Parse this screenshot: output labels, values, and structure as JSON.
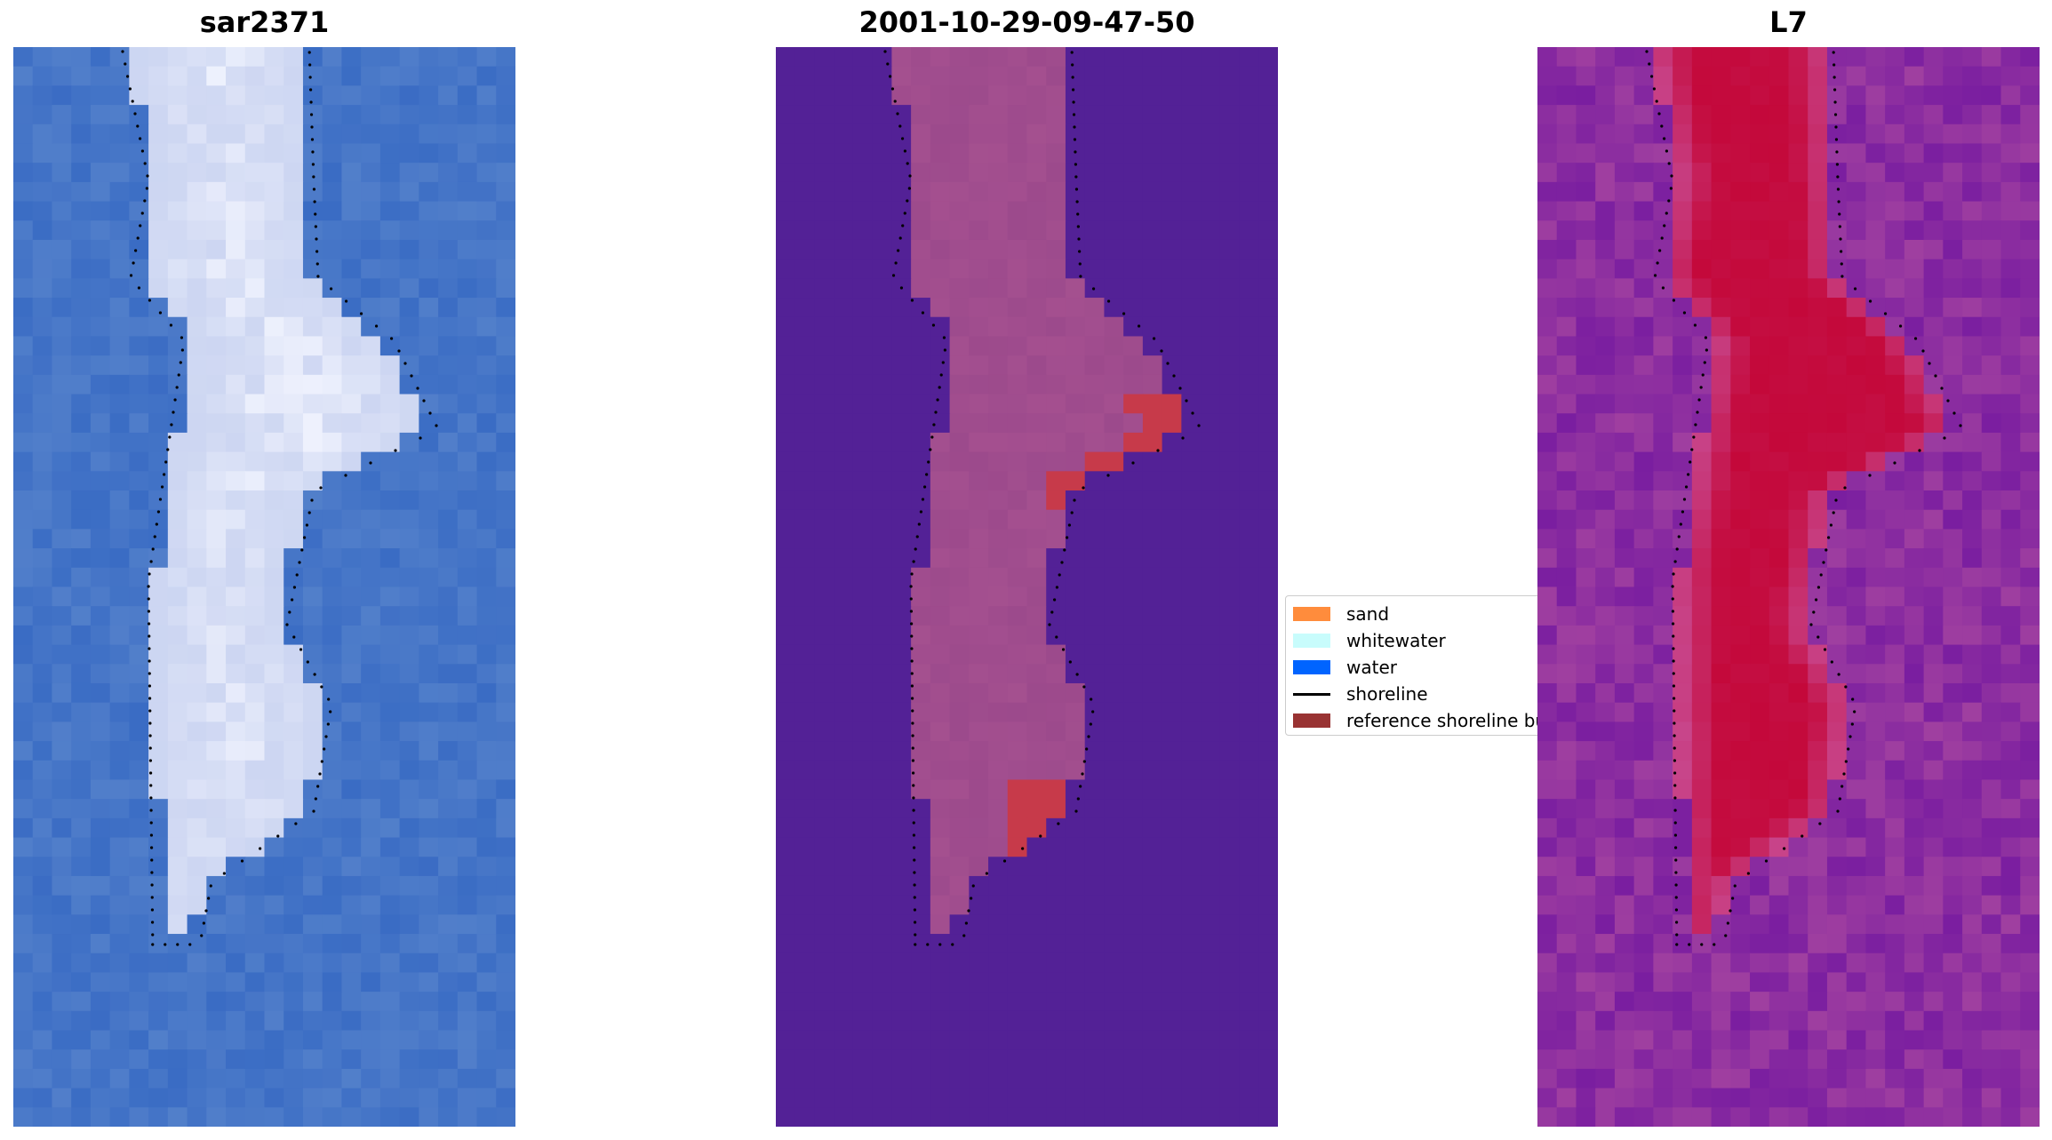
{
  "panels": [
    {
      "title": "sar2371"
    },
    {
      "title": "2001-10-29-09-47-50"
    },
    {
      "title": "L7"
    }
  ],
  "legend": {
    "items": [
      {
        "label": "sand",
        "color": "#ff8c3c",
        "kind": "patch"
      },
      {
        "label": "whitewater",
        "color": "#c8fcfc",
        "kind": "patch"
      },
      {
        "label": "water",
        "color": "#0064ff",
        "kind": "patch"
      },
      {
        "label": "shoreline",
        "color": "#000000",
        "kind": "line"
      },
      {
        "label": "reference shoreline buffer",
        "color": "#993333",
        "kind": "patch"
      }
    ]
  },
  "colors": {
    "rgb_water": "#3a6cc4",
    "rgb_land": "#c8d2f0",
    "rgb_bright": "#f4f6ff",
    "class_water": "#532196",
    "class_land": "#9c4a8c",
    "class_buffer": "#c73a4a",
    "ndwi_low": "#7a1ea0",
    "ndwi_high": "#c4083a",
    "shoreline": "#000000"
  }
}
